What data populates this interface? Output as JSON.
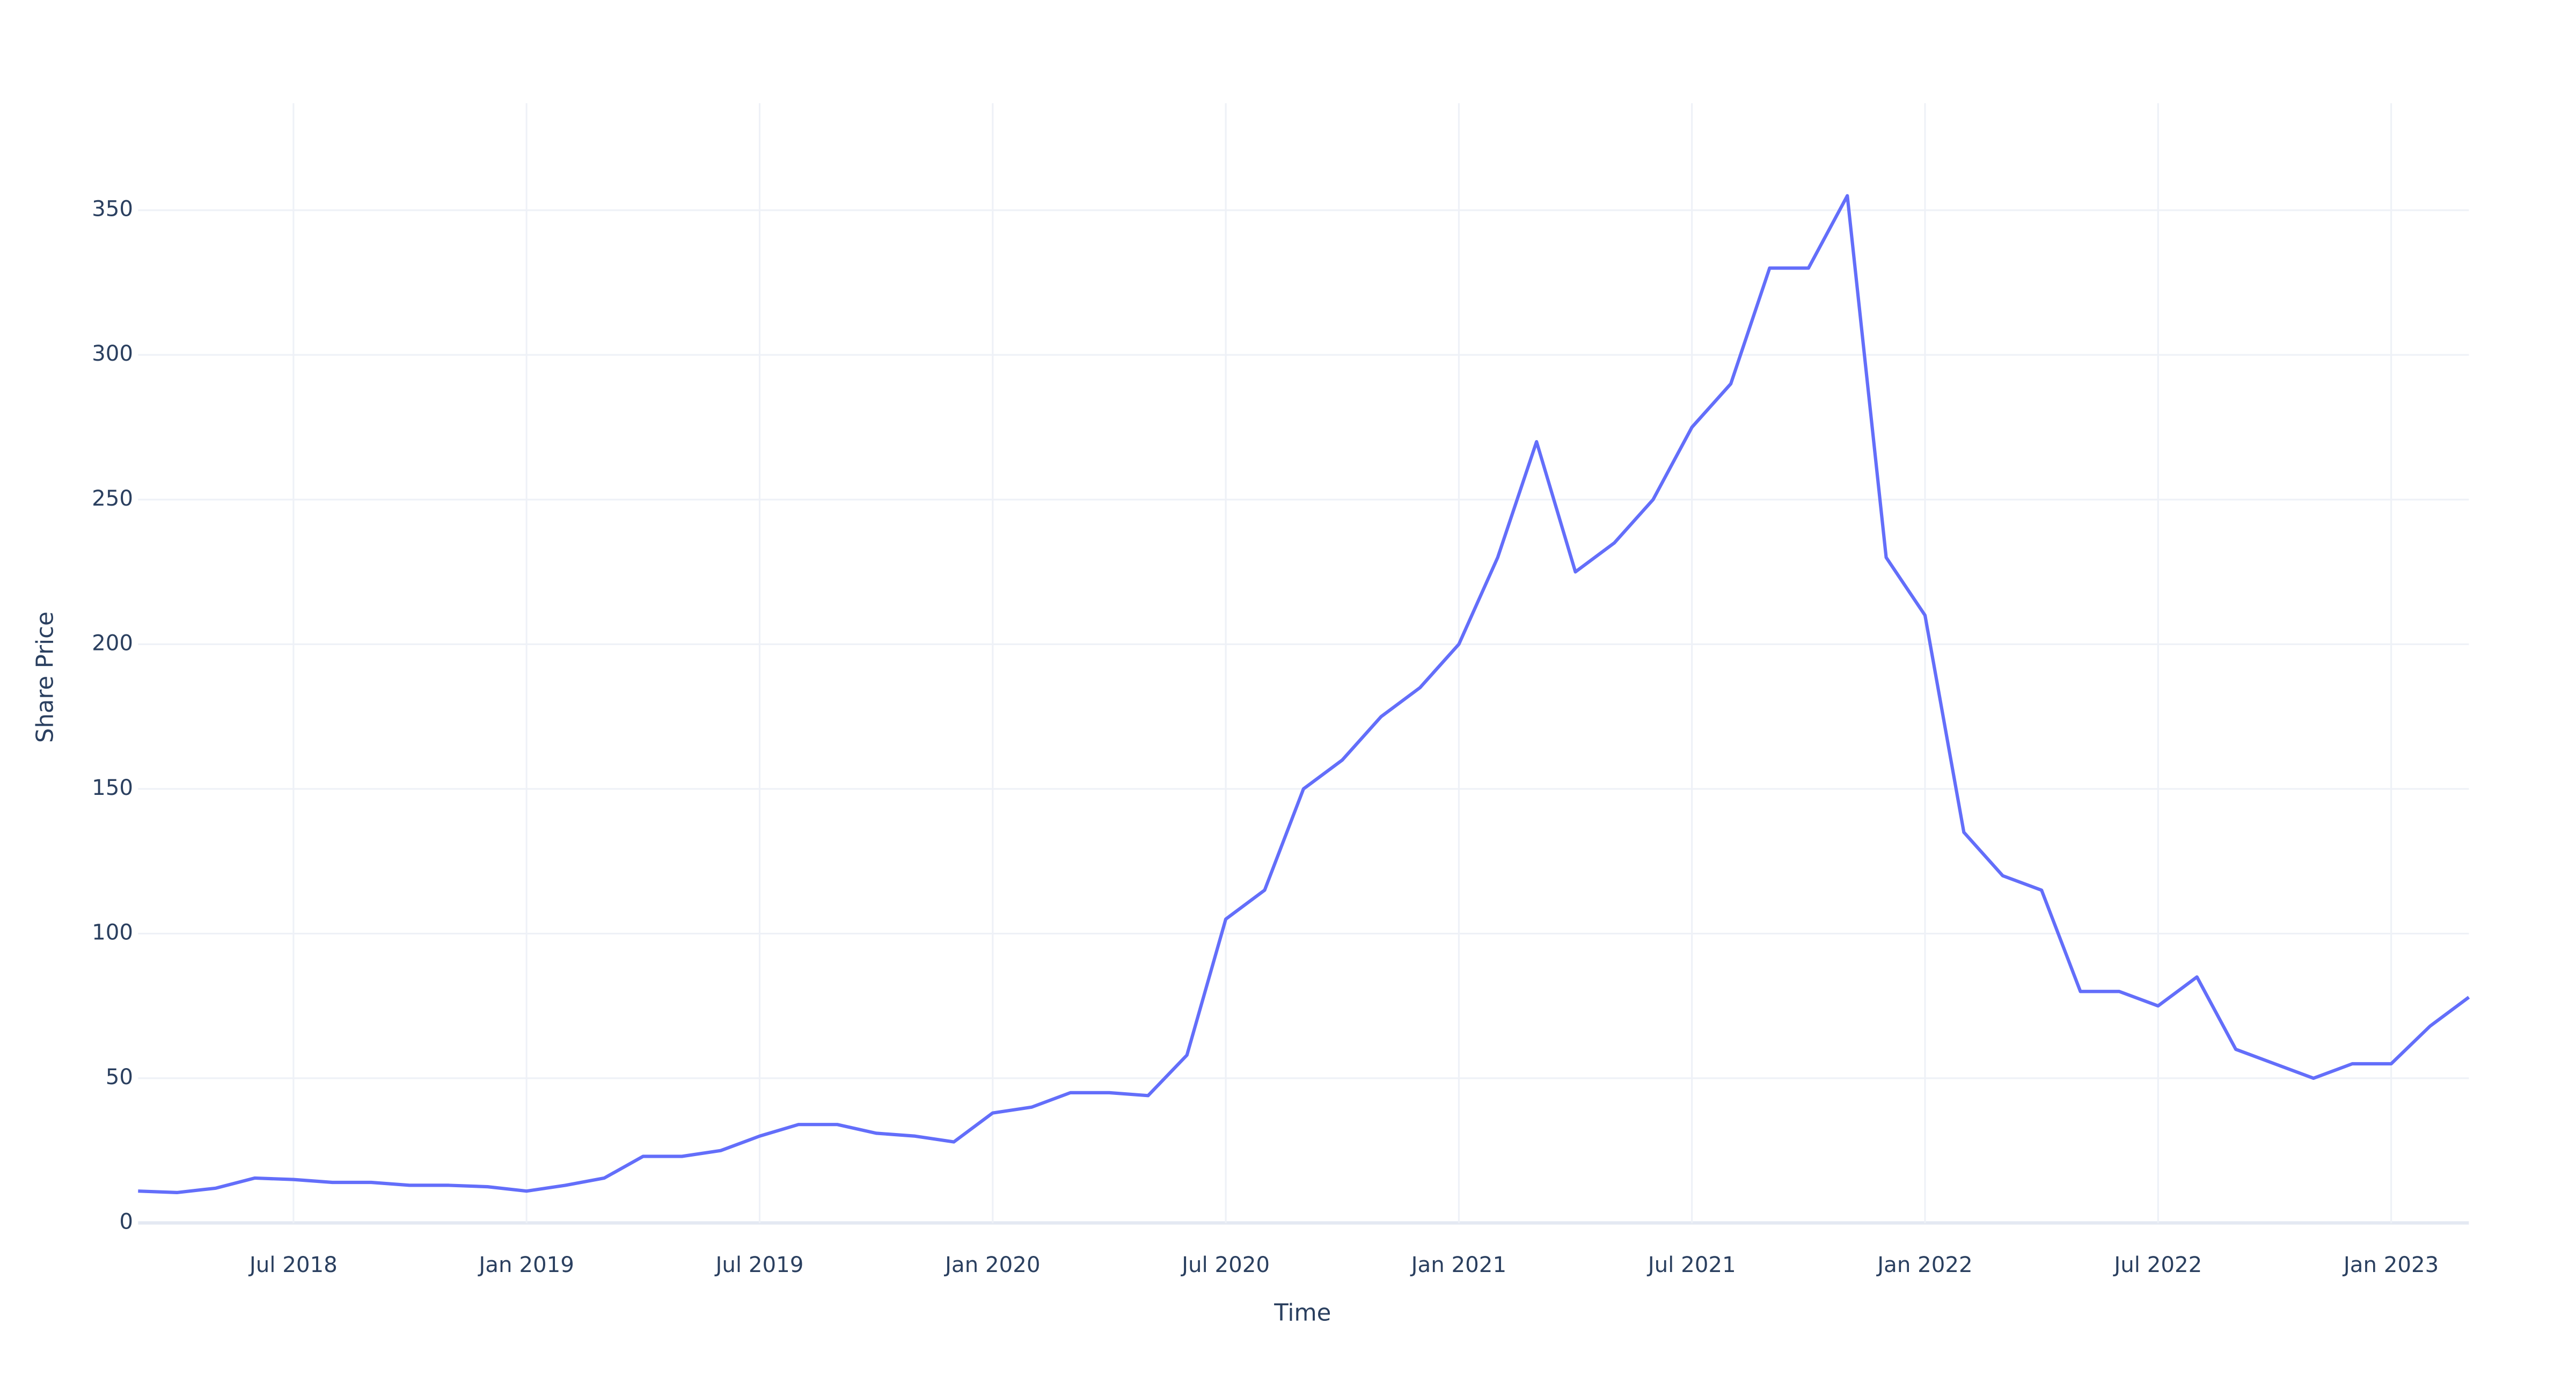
{
  "chart_data": {
    "type": "line",
    "x_label": "Time",
    "y_label": "Share Price",
    "x": [
      "2018-03",
      "2018-04",
      "2018-05",
      "2018-06",
      "2018-07",
      "2018-08",
      "2018-09",
      "2018-10",
      "2018-11",
      "2018-12",
      "2019-01",
      "2019-02",
      "2019-03",
      "2019-04",
      "2019-05",
      "2019-06",
      "2019-07",
      "2019-08",
      "2019-09",
      "2019-10",
      "2019-11",
      "2019-12",
      "2020-01",
      "2020-02",
      "2020-03",
      "2020-04",
      "2020-05",
      "2020-06",
      "2020-07",
      "2020-08",
      "2020-09",
      "2020-10",
      "2020-11",
      "2020-12",
      "2021-01",
      "2021-02",
      "2021-03",
      "2021-04",
      "2021-05",
      "2021-06",
      "2021-07",
      "2021-08",
      "2021-09",
      "2021-10",
      "2021-11",
      "2021-12",
      "2022-01",
      "2022-02",
      "2022-03",
      "2022-04",
      "2022-05",
      "2022-06",
      "2022-07",
      "2022-08",
      "2022-09",
      "2022-10",
      "2022-11",
      "2022-12",
      "2023-01",
      "2023-02",
      "2023-03"
    ],
    "series": [
      {
        "name": "Share Price",
        "color": "#636efa",
        "values": [
          11,
          10.5,
          12,
          15.5,
          15,
          14,
          14,
          13,
          13,
          12.5,
          11,
          13,
          15.5,
          23,
          23,
          25,
          30,
          34,
          34,
          31,
          30,
          28,
          38,
          40,
          45,
          45,
          44,
          58,
          105,
          115,
          150,
          160,
          175,
          185,
          200,
          230,
          270,
          225,
          235,
          250,
          275,
          290,
          330,
          330,
          355,
          230,
          210,
          135,
          120,
          115,
          80,
          80,
          75,
          85,
          60,
          55,
          50,
          55,
          55,
          68,
          78
        ]
      }
    ],
    "xlim": [
      "2018-03",
      "2023-03"
    ],
    "xticks": [
      {
        "value": "2018-07",
        "label": "Jul 2018"
      },
      {
        "value": "2019-01",
        "label": "Jan 2019"
      },
      {
        "value": "2019-07",
        "label": "Jul 2019"
      },
      {
        "value": "2020-01",
        "label": "Jan 2020"
      },
      {
        "value": "2020-07",
        "label": "Jul 2020"
      },
      {
        "value": "2021-01",
        "label": "Jan 2021"
      },
      {
        "value": "2021-07",
        "label": "Jul 2021"
      },
      {
        "value": "2022-01",
        "label": "Jan 2022"
      },
      {
        "value": "2022-07",
        "label": "Jul 2022"
      },
      {
        "value": "2023-01",
        "label": "Jan 2023"
      }
    ],
    "ylim": [
      0,
      387
    ],
    "yticks": [
      0,
      50,
      100,
      150,
      200,
      250,
      300,
      350
    ],
    "grid": true
  }
}
